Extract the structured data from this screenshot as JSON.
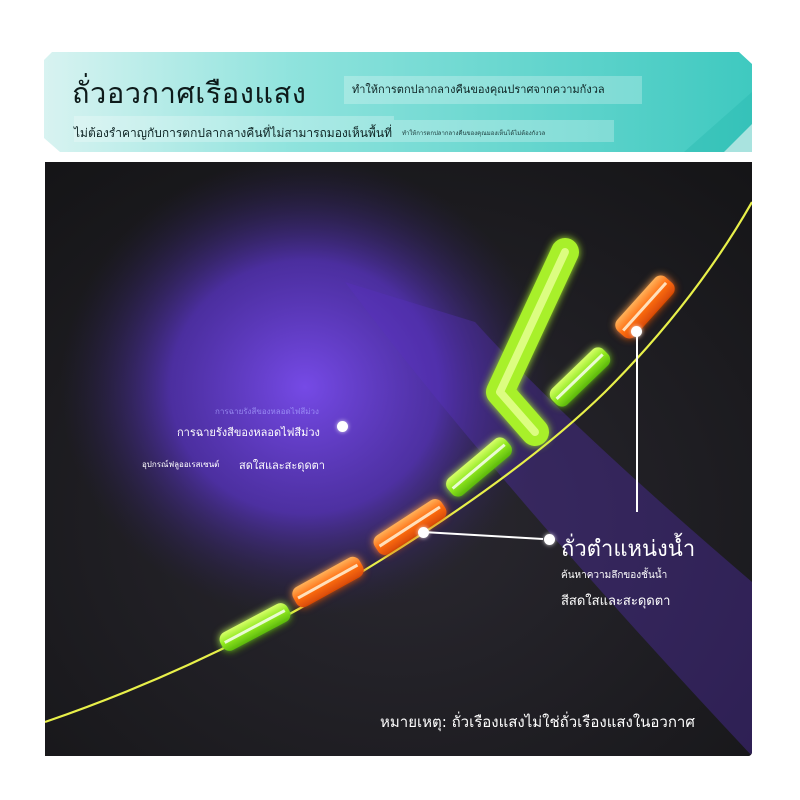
{
  "header": {
    "title": "ถั่วอวกาศเรืองแสง",
    "subtitle_right": "ทำให้การตกปลากลางคืนของคุณปราศจากความกังวล",
    "subtitle_left": "ไม่ต้องรำคาญกับการตกปลากลางคืนที่ไม่สามารถมองเห็นพื้นที่",
    "tiny_text": "ทำให้การตกปลากลางคืนของคุณมองเห็นได้ไม่ต้องกังวล"
  },
  "labels": {
    "uv_light": "การฉายรังสีของหลอดไฟสีม่วง",
    "uv_light_ghost": "การฉายรังสีของหลอดไฟสีม่วง",
    "fluo_small": "อุปกรณ์ฟลูออเรสเซนต์",
    "fluo": "สดใสและสะดุดตา",
    "position_title": "ถั่วตำแหน่งน้ำ",
    "position_sub1": "ค้นหาความลึกของชั้นน้ำ",
    "position_sub2": "สีสดใสและสะดุดตา",
    "note": "หมายเหตุ: ถั่วเรืองแสงไม่ใช่ถั่วเรืองแสงในอวกาศ"
  },
  "colors": {
    "banner": "#5fd6cf",
    "panel": "#1f1f22",
    "uv_glow": "#6a3fd8",
    "line": "#e8f04a",
    "bead_green": "#9cf02a",
    "bead_orange": "#ff7a18"
  }
}
